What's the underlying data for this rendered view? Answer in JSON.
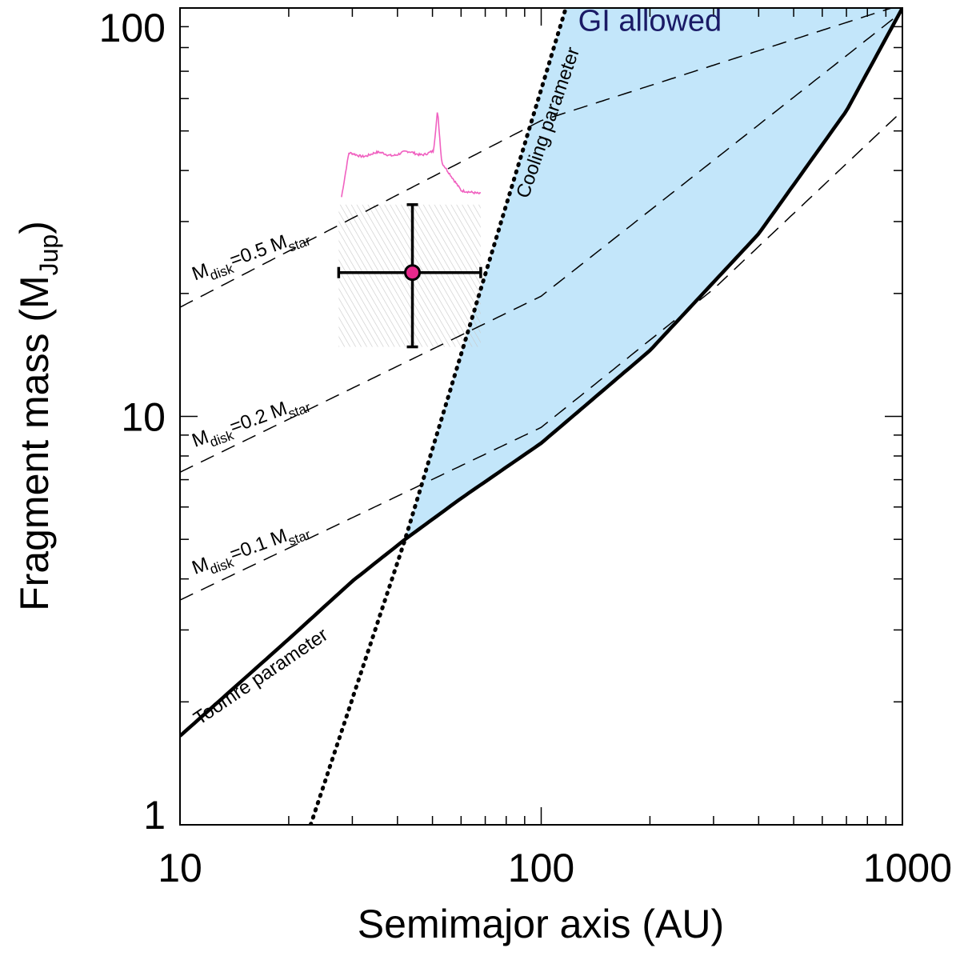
{
  "chart_data": {
    "type": "line",
    "xscale": "log",
    "yscale": "log",
    "xlim": [
      10,
      1000
    ],
    "ylim": [
      1,
      100
    ],
    "xlabel": "Semimajor axis (AU)",
    "ylabel_main": "Fragment mass (M",
    "ylabel_sub": "Jup",
    "ylabel_close": ")",
    "x_ticks": [
      {
        "value": 10,
        "label": "10"
      },
      {
        "value": 100,
        "label": "100"
      },
      {
        "value": 1000,
        "label": "1000"
      }
    ],
    "y_ticks": [
      {
        "value": 1,
        "label": "1"
      },
      {
        "value": 10,
        "label": "10"
      },
      {
        "value": 100,
        "label": "100"
      }
    ],
    "region": {
      "label": "GI allowed",
      "fill_color": "#c3e6fa",
      "text_color": "#1a1a66",
      "label_at": {
        "x": 200,
        "y": 88
      }
    },
    "series": [
      {
        "name": "Toomre parameter",
        "style": "solid-thick",
        "points": [
          [
            10,
            1.65
          ],
          [
            20,
            2.85
          ],
          [
            30,
            3.95
          ],
          [
            42,
            5.0
          ],
          [
            60,
            6.3
          ],
          [
            100,
            8.6
          ],
          [
            200,
            14.5
          ],
          [
            400,
            28
          ],
          [
            700,
            56
          ],
          [
            1000,
            100
          ]
        ]
      },
      {
        "name": "Cooling parameter",
        "style": "dotted",
        "points": [
          [
            23,
            1.0
          ],
          [
            42,
            5.0
          ],
          [
            117,
            100
          ]
        ]
      },
      {
        "name": "M_disk=0.5 M_star",
        "style": "dashed",
        "points": [
          [
            10,
            18.5
          ],
          [
            100,
            53
          ],
          [
            1000,
            102
          ]
        ]
      },
      {
        "name": "M_disk=0.2 M_star",
        "style": "dashed",
        "points": [
          [
            10,
            7.3
          ],
          [
            100,
            19.7
          ],
          [
            1000,
            98
          ]
        ]
      },
      {
        "name": "M_disk=0.1 M_star",
        "style": "dashed",
        "points": [
          [
            10,
            3.55
          ],
          [
            100,
            9.4
          ],
          [
            300,
            20.5
          ],
          [
            1000,
            56
          ]
        ]
      }
    ],
    "curve_labels": [
      {
        "main": "M",
        "sub1": "disk",
        "mid": "=0.5 M",
        "sub2": "star",
        "x": 11,
        "y": 21.5,
        "angle": -20
      },
      {
        "main": "M",
        "sub1": "disk",
        "mid": "=0.2 M",
        "sub2": "star",
        "x": 11,
        "y": 8.4,
        "angle": -20
      },
      {
        "main": "M",
        "sub1": "disk",
        "mid": "=0.1 M",
        "sub2": "star",
        "x": 11,
        "y": 4.1,
        "angle": -20
      },
      {
        "text": "Toomre parameter",
        "x": 11.3,
        "y": 1.75,
        "angle": -34
      },
      {
        "text": "Cooling parameter",
        "x": 92,
        "y": 34,
        "angle": -71
      }
    ],
    "data_point": {
      "x": 44,
      "y": 22.5,
      "x_err": [
        27.5,
        68
      ],
      "y_err": [
        14.8,
        33
      ],
      "marker_color": "#e8288c"
    },
    "hatched_box": {
      "x_range": [
        27.5,
        68
      ],
      "y_range": [
        14.8,
        33
      ],
      "color": "#c8c8c8"
    },
    "spectrum": {
      "color": "#f060c0",
      "x_range": [
        28,
        68
      ],
      "y_range": [
        33,
        56
      ]
    }
  }
}
